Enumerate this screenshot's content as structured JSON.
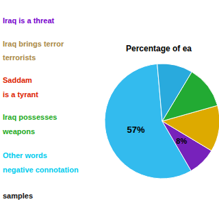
{
  "chart_data": {
    "type": "pie",
    "title": "Percentage of ea",
    "values": [
      57,
      8,
      13,
      12,
      10
    ],
    "colors": [
      "#33bbee",
      "#7722bb",
      "#ddaa00",
      "#22aa33",
      "#29aadd"
    ],
    "data_labels": true,
    "value_labels": [
      "57%",
      "8%",
      null,
      null,
      null
    ],
    "annotations": [
      {
        "text": "Iraq is a threat",
        "color": "#7700cc"
      },
      {
        "text": "Iraq brings terror",
        "color": "#aa8844"
      },
      {
        "text": "terrorists",
        "color": "#aa8844"
      },
      {
        "text": "Saddam",
        "color": "#dd2200"
      },
      {
        "text": "is a tyrant",
        "color": "#dd2200"
      },
      {
        "text": "Iraq possesses",
        "color": "#22aa22"
      },
      {
        "text": "weapons",
        "color": "#22aa22"
      },
      {
        "text": "Other words",
        "color": "#00ccee"
      },
      {
        "text": "negative connotation",
        "color": "#00ccee"
      },
      {
        "text": "samples",
        "color": "#111111"
      }
    ]
  }
}
